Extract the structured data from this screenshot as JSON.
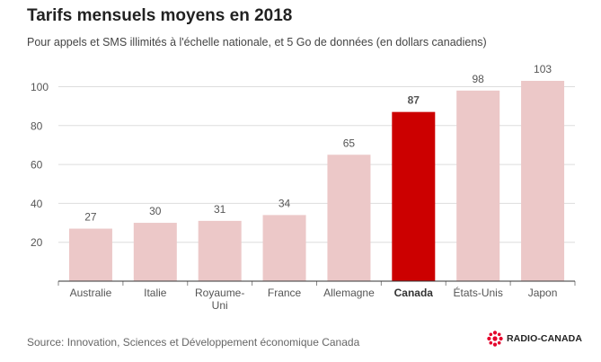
{
  "header": {
    "title": "Tarifs mensuels moyens en 2018",
    "subtitle": "Pour appels et SMS illimités à l'échelle nationale, et 5 Go de données (en dollars canadiens)"
  },
  "footer": {
    "source": "Source: Innovation, Sciences et Développement économique Canada",
    "brand_name": "RADIO-CANADA",
    "brand_logo": "radio-canada-gem-icon"
  },
  "colors": {
    "bar": "#ecc8c8",
    "highlight": "#cc0000",
    "grid": "#dddddd",
    "axis_text": "#555555"
  },
  "chart_data": {
    "type": "bar",
    "categories": [
      "Australie",
      "Italie",
      "Royaume-Uni",
      "France",
      "Allemagne",
      "Canada",
      "États-Unis",
      "Japon"
    ],
    "category_lines": [
      [
        "Australie"
      ],
      [
        "Italie"
      ],
      [
        "Royaume-",
        "Uni"
      ],
      [
        "France"
      ],
      [
        "Allemagne"
      ],
      [
        "Canada"
      ],
      [
        "États-Unis"
      ],
      [
        "Japon"
      ]
    ],
    "values": [
      27,
      30,
      31,
      34,
      65,
      87,
      98,
      103
    ],
    "value_labels": [
      "27",
      "30",
      "31",
      "34",
      "65",
      "87",
      "98",
      "103"
    ],
    "highlight": "Canada",
    "yticks": [
      20,
      40,
      60,
      80,
      100
    ],
    "ytick_labels": [
      "20",
      "40",
      "60",
      "80",
      "100"
    ],
    "ylim": [
      0,
      110
    ],
    "grid": true,
    "legend": "none",
    "title": "Tarifs mensuels moyens en 2018",
    "subtitle": "Pour appels et SMS illimités à l'échelle nationale, et 5 Go de données (en dollars canadiens)",
    "xlabel": "",
    "ylabel": ""
  }
}
